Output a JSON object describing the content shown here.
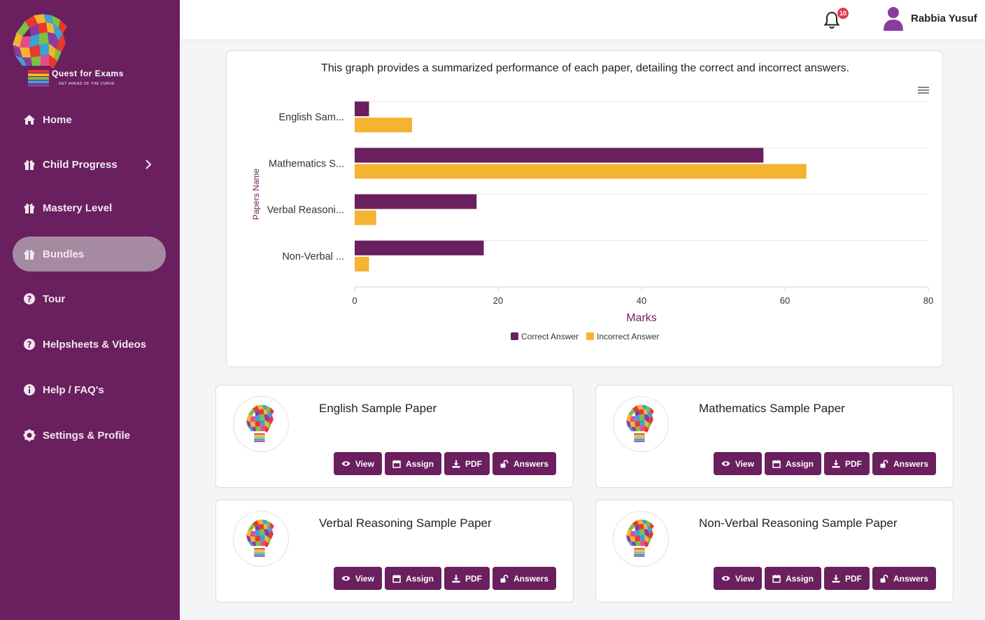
{
  "brand": {
    "name": "Quest for Exams",
    "tagline": "GET AHEAD OF THE CURVE"
  },
  "sidebar": {
    "items": [
      {
        "label": "Home",
        "icon": "home-icon"
      },
      {
        "label": "Child Progress",
        "icon": "gift-icon",
        "has_submenu": true
      },
      {
        "label": "Mastery Level",
        "icon": "gift-icon"
      },
      {
        "label": "Bundles",
        "icon": "gift-icon",
        "active": true
      },
      {
        "label": "Tour",
        "icon": "question-icon"
      },
      {
        "label": "Helpsheets & Videos",
        "icon": "question-icon"
      },
      {
        "label": "Help / FAQ's",
        "icon": "info-icon"
      },
      {
        "label": "Settings & Profile",
        "icon": "gear-icon"
      }
    ]
  },
  "header": {
    "notification_count": "10",
    "user_name": "Rabbia Yusuf"
  },
  "chart_data": {
    "type": "bar",
    "orientation": "horizontal",
    "title": "This graph provides a summarized performance of each paper, detailing the correct and incorrect answers.",
    "categories": [
      "English Sam...",
      "Mathematics S...",
      "Verbal Reasoni...",
      "Non-Verbal ..."
    ],
    "series": [
      {
        "name": "Correct Answer",
        "color": "#6a1f5e",
        "values": [
          2,
          57,
          17,
          18
        ]
      },
      {
        "name": "Incorrect Answer",
        "color": "#f5b332",
        "values": [
          8,
          63,
          3,
          2
        ]
      }
    ],
    "xlabel": "Marks",
    "ylabel": "Papers Name",
    "xlim": [
      0,
      80
    ],
    "xticks": [
      "0",
      "20",
      "40",
      "60",
      "80"
    ],
    "legend": "bottom-center"
  },
  "papers": [
    {
      "title": "English Sample Paper"
    },
    {
      "title": "Mathematics Sample Paper"
    },
    {
      "title": "Verbal Reasoning Sample Paper"
    },
    {
      "title": "Non-Verbal Reasoning Sample Paper"
    }
  ],
  "actions": {
    "view": "View",
    "assign": "Assign",
    "pdf": "PDF",
    "answers": "Answers"
  },
  "colors": {
    "primary": "#6a1f5e",
    "accent": "#f5b332",
    "active_nav": "#a68aa2",
    "badge": "#e23a4d"
  }
}
